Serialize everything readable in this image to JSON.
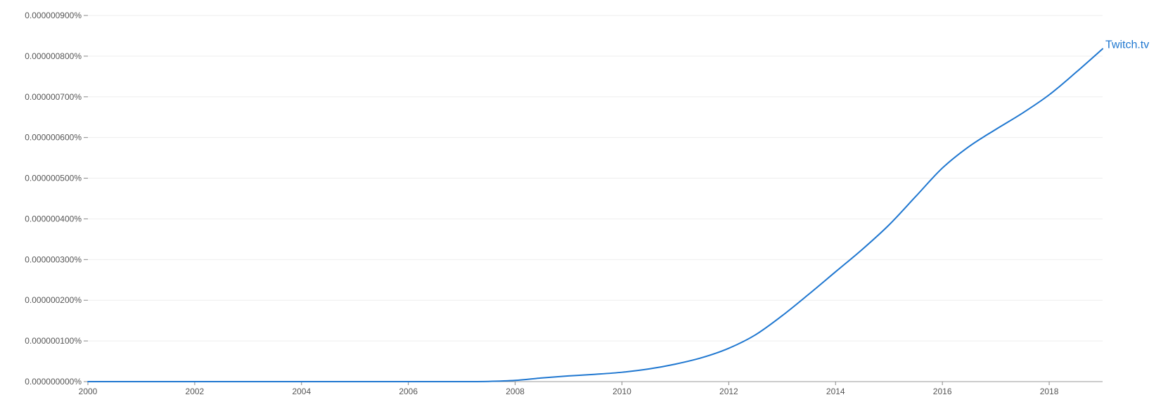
{
  "chart_data": {
    "type": "line",
    "title": "",
    "xlabel": "",
    "ylabel": "",
    "xlim": [
      2000,
      2019
    ],
    "ylim": [
      0,
      9e-07
    ],
    "grid": true,
    "legend": "inline-end",
    "x_ticks": [
      {
        "value": 2000,
        "label": "2000"
      },
      {
        "value": 2002,
        "label": "2002"
      },
      {
        "value": 2004,
        "label": "2004"
      },
      {
        "value": 2006,
        "label": "2006"
      },
      {
        "value": 2008,
        "label": "2008"
      },
      {
        "value": 2010,
        "label": "2010"
      },
      {
        "value": 2012,
        "label": "2012"
      },
      {
        "value": 2014,
        "label": "2014"
      },
      {
        "value": 2016,
        "label": "2016"
      },
      {
        "value": 2018,
        "label": "2018"
      }
    ],
    "y_ticks": [
      {
        "value": 0,
        "label": "0.000000000%"
      },
      {
        "value": 1e-07,
        "label": "0.000000100%"
      },
      {
        "value": 2e-07,
        "label": "0.000000200%"
      },
      {
        "value": 3e-07,
        "label": "0.000000300%"
      },
      {
        "value": 4e-07,
        "label": "0.000000400%"
      },
      {
        "value": 5e-07,
        "label": "0.000000500%"
      },
      {
        "value": 6e-07,
        "label": "0.000000600%"
      },
      {
        "value": 7e-07,
        "label": "0.000000700%"
      },
      {
        "value": 8e-07,
        "label": "0.000000800%"
      },
      {
        "value": 9e-07,
        "label": "0.000000900%"
      }
    ],
    "series": [
      {
        "name": "Twitch.tv",
        "color": "#1f77d0",
        "x": [
          2000,
          2001,
          2002,
          2003,
          2004,
          2005,
          2006,
          2007,
          2007.5,
          2008,
          2008.5,
          2009,
          2009.5,
          2010,
          2010.5,
          2011,
          2011.5,
          2012,
          2012.5,
          2013,
          2013.5,
          2014,
          2014.5,
          2015,
          2015.5,
          2016,
          2016.5,
          2017,
          2017.5,
          2018,
          2018.5,
          2019
        ],
        "values": [
          0,
          0,
          0,
          0,
          0,
          0,
          0,
          0,
          5e-10,
          3e-09,
          9e-09,
          1.4e-08,
          1.8e-08,
          2.3e-08,
          3.1e-08,
          4.3e-08,
          5.9e-08,
          8.2e-08,
          1.15e-07,
          1.62e-07,
          2.15e-07,
          2.7e-07,
          3.25e-07,
          3.85e-07,
          4.55e-07,
          5.25e-07,
          5.78e-07,
          6.2e-07,
          6.6e-07,
          7.05e-07,
          7.6e-07,
          8.18e-07
        ]
      }
    ]
  }
}
